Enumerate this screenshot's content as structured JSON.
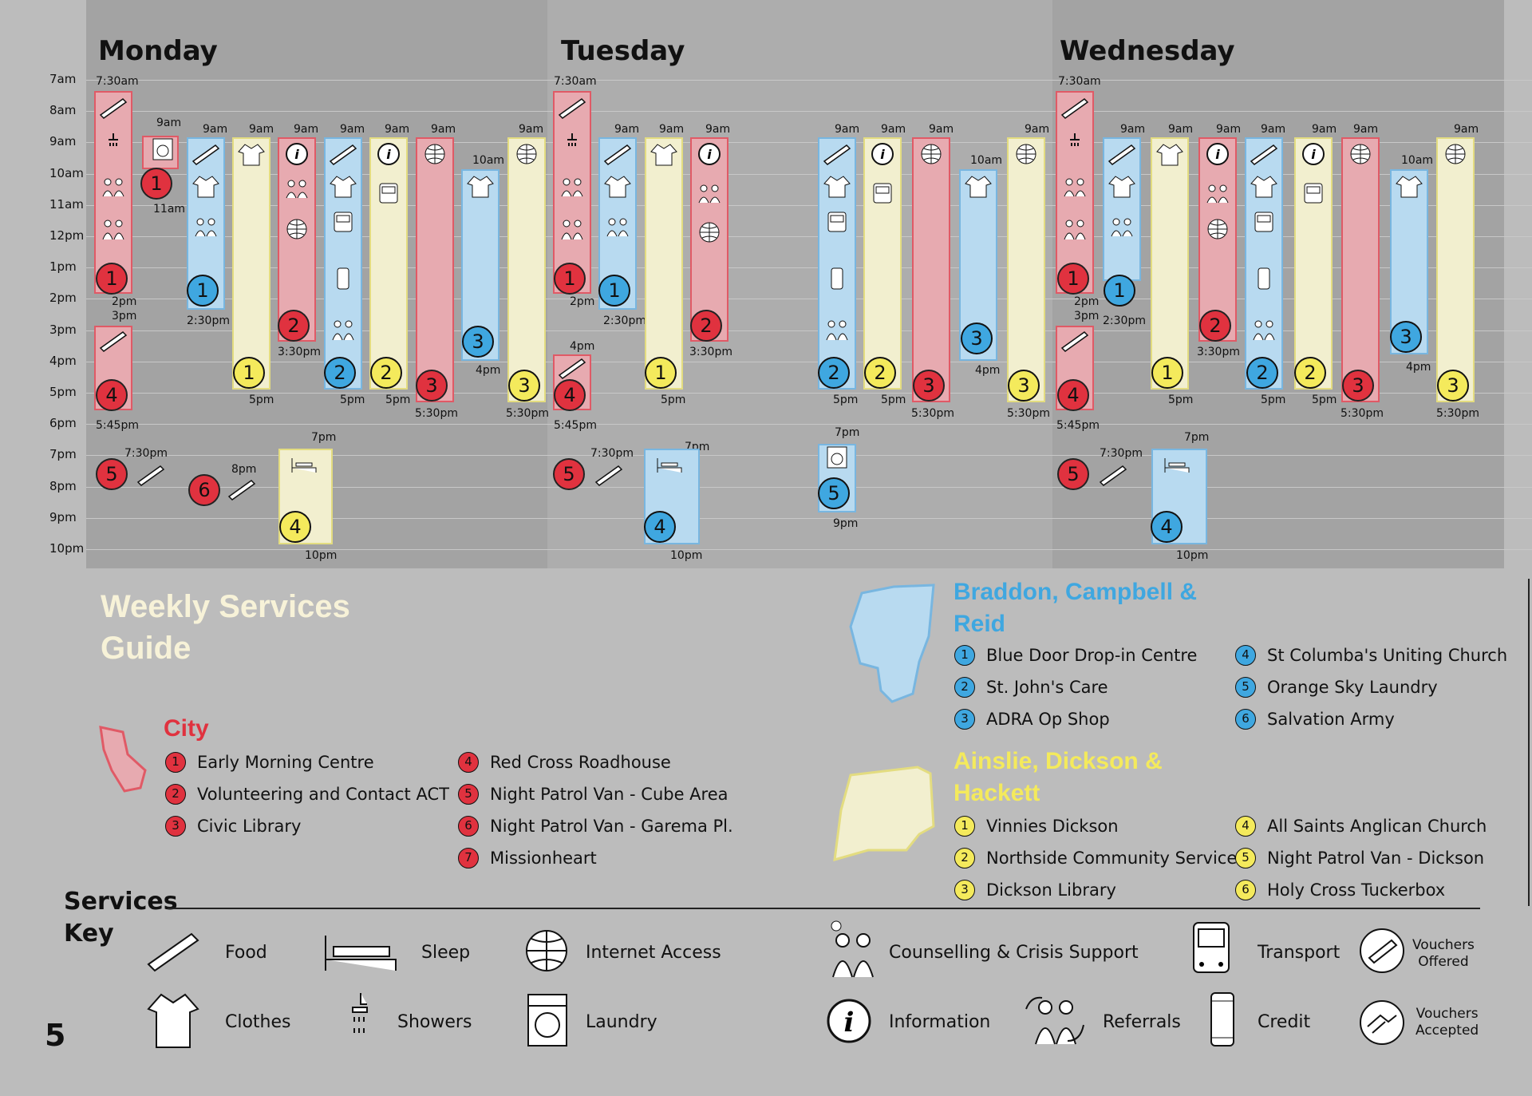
{
  "days": [
    {
      "name": "Monday"
    },
    {
      "name": "Tuesday"
    },
    {
      "name": "Wednesday"
    }
  ],
  "hours": [
    "7am",
    "8am",
    "9am",
    "10am",
    "11am",
    "12pm",
    "1pm",
    "2pm",
    "3pm",
    "4pm",
    "5pm",
    "6pm",
    "7pm",
    "8pm",
    "9pm",
    "10pm"
  ],
  "time_labels": {
    "t730": "7:30am",
    "t9": "9am",
    "t10": "10am",
    "t11": "11am",
    "t2": "2pm",
    "t3": "3pm",
    "t230": "2:30pm",
    "t330": "3:30pm",
    "t4": "4pm",
    "t5": "5pm",
    "t530": "5:30pm",
    "t545": "5:45pm",
    "t7": "7pm",
    "t730p": "7:30pm",
    "t8": "8pm",
    "t9p": "9pm",
    "t10p": "10pm"
  },
  "title": {
    "line1": "Weekly Services",
    "line2": "Guide"
  },
  "regions": {
    "city": {
      "name": "City",
      "color": "#e0323f",
      "items": [
        {
          "n": "1",
          "label": "Early Morning Centre"
        },
        {
          "n": "2",
          "label": "Volunteering and Contact ACT"
        },
        {
          "n": "3",
          "label": "Civic Library"
        },
        {
          "n": "4",
          "label": "Red Cross Roadhouse"
        },
        {
          "n": "5",
          "label": "Night Patrol Van - Cube Area"
        },
        {
          "n": "6",
          "label": "Night Patrol Van - Garema Pl."
        },
        {
          "n": "7",
          "label": "Missionheart"
        }
      ]
    },
    "braddon": {
      "name_line1": "Braddon, Campbell &",
      "name_line2": "Reid",
      "color": "#3fa7e0",
      "items": [
        {
          "n": "1",
          "label": "Blue Door Drop-in Centre"
        },
        {
          "n": "2",
          "label": "St. John's Care"
        },
        {
          "n": "3",
          "label": "ADRA Op Shop"
        },
        {
          "n": "4",
          "label": "St Columba's Uniting Church"
        },
        {
          "n": "5",
          "label": "Orange Sky Laundry"
        },
        {
          "n": "6",
          "label": "Salvation Army"
        }
      ]
    },
    "ainslie": {
      "name_line1": "Ainslie, Dickson &",
      "name_line2": "Hackett",
      "color": "#f4ea5c",
      "items": [
        {
          "n": "1",
          "label": "Vinnies Dickson"
        },
        {
          "n": "2",
          "label": "Northside Community Service"
        },
        {
          "n": "3",
          "label": "Dickson Library"
        },
        {
          "n": "4",
          "label": "All Saints Anglican Church"
        },
        {
          "n": "5",
          "label": "Night Patrol Van - Dickson"
        },
        {
          "n": "6",
          "label": "Holy Cross Tuckerbox"
        }
      ]
    }
  },
  "services_key": {
    "heading_line1": "Services",
    "heading_line2": "Key",
    "items": [
      {
        "label": "Food",
        "icon": "food-icon"
      },
      {
        "label": "Sleep",
        "icon": "bed-icon"
      },
      {
        "label": "Internet Access",
        "icon": "globe-icon"
      },
      {
        "label": "Counselling & Crisis Support",
        "icon": "counselling-icon"
      },
      {
        "label": "Transport",
        "icon": "bus-icon"
      },
      {
        "label": "Vouchers",
        "label2": "Offered",
        "icon": "voucher-offered-icon"
      },
      {
        "label": "Clothes",
        "icon": "shirt-icon"
      },
      {
        "label": "Showers",
        "icon": "shower-icon"
      },
      {
        "label": "Laundry",
        "icon": "washing-machine-icon"
      },
      {
        "label": "Information",
        "icon": "info-icon"
      },
      {
        "label": "Referrals",
        "icon": "referrals-icon"
      },
      {
        "label": "Credit",
        "icon": "phone-icon"
      },
      {
        "label": "Vouchers",
        "label2": "Accepted",
        "icon": "voucher-accepted-icon"
      }
    ]
  },
  "page_number": "5",
  "colors": {
    "red": "#e0323f",
    "blue": "#3fa7e0",
    "yellow": "#f4ea5c"
  }
}
